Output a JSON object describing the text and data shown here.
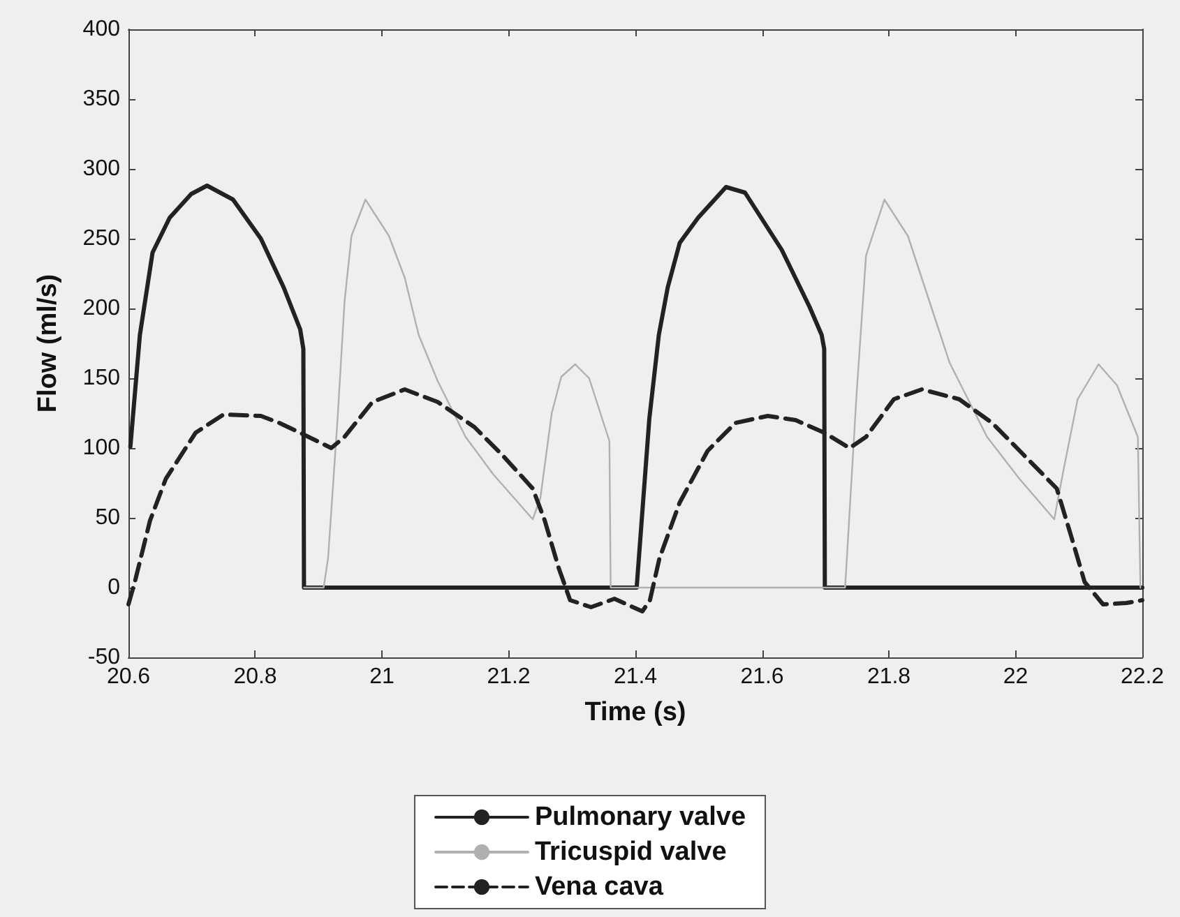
{
  "chart_data": {
    "type": "line",
    "xlabel": "Time (s)",
    "ylabel": "Flow (ml/s)",
    "xlim": [
      20.6,
      22.2
    ],
    "xticks": [
      20.6,
      20.8,
      21,
      21.2,
      21.4,
      21.6,
      21.8,
      22,
      22.2
    ],
    "ylim": [
      -50,
      400
    ],
    "yticks": [
      -50,
      0,
      50,
      100,
      150,
      200,
      250,
      300,
      350,
      400
    ],
    "grid": false,
    "legend": "bottom",
    "marker": "none",
    "series": [
      {
        "name": "Pulmonary valve",
        "color": "#222222",
        "line_style": "solid",
        "x": [
          20.603,
          20.618,
          20.638,
          20.665,
          20.699,
          20.724,
          20.765,
          20.809,
          20.845,
          20.871,
          20.876,
          20.877,
          21.4,
          21.402,
          21.422,
          21.437,
          21.451,
          21.47,
          21.499,
          21.543,
          21.573,
          21.631,
          21.675,
          21.694,
          21.698,
          21.699,
          22.2
        ],
        "values": [
          101,
          181,
          240,
          265,
          282,
          288,
          278,
          250,
          215,
          185,
          171,
          0,
          0,
          0,
          121,
          181,
          215,
          247,
          265,
          287,
          283,
          242,
          201,
          181,
          171,
          0,
          0
        ]
      },
      {
        "name": "Tricuspid valve",
        "color": "#b0b0b0",
        "line_style": "solid",
        "x": [
          20.877,
          20.908,
          20.915,
          20.93,
          20.941,
          20.952,
          20.974,
          21.011,
          21.036,
          21.058,
          21.088,
          21.132,
          21.176,
          21.238,
          21.25,
          21.268,
          21.283,
          21.305,
          21.327,
          21.359,
          21.361,
          21.731,
          21.749,
          21.764,
          21.793,
          21.83,
          21.867,
          21.896,
          21.955,
          22.006,
          22.061,
          22.076,
          22.098,
          22.131,
          22.16,
          22.193,
          22.197
        ],
        "values": [
          0,
          0,
          21,
          121,
          205,
          252,
          278,
          252,
          222,
          181,
          148,
          108,
          81,
          49,
          64,
          125,
          151,
          160,
          150,
          105,
          0,
          0,
          138,
          238,
          278,
          252,
          201,
          161,
          108,
          78,
          49,
          85,
          135,
          160,
          145,
          108,
          0
        ]
      },
      {
        "name": "Vena cava",
        "color": "#222222",
        "line_style": "dashed",
        "x": [
          20.6,
          20.61,
          20.634,
          20.659,
          20.706,
          20.75,
          20.809,
          20.838,
          20.875,
          20.92,
          20.941,
          20.985,
          21.036,
          21.088,
          21.146,
          21.19,
          21.238,
          21.257,
          21.279,
          21.297,
          21.33,
          21.367,
          21.411,
          21.423,
          21.438,
          21.47,
          21.514,
          21.558,
          21.609,
          21.653,
          21.698,
          21.738,
          21.764,
          21.808,
          21.852,
          21.911,
          21.963,
          22.013,
          22.065,
          22.087,
          22.109,
          22.138,
          22.175,
          22.2
        ],
        "values": [
          -12,
          4,
          48,
          78,
          111,
          124,
          123,
          118,
          110,
          100,
          108,
          133,
          142,
          133,
          115,
          95,
          71,
          48,
          14,
          -9,
          -14,
          -8,
          -17,
          -9,
          21,
          61,
          98,
          118,
          123,
          120,
          111,
          100,
          108,
          135,
          142,
          135,
          118,
          95,
          71,
          38,
          4,
          -12,
          -11,
          -9
        ]
      }
    ]
  }
}
